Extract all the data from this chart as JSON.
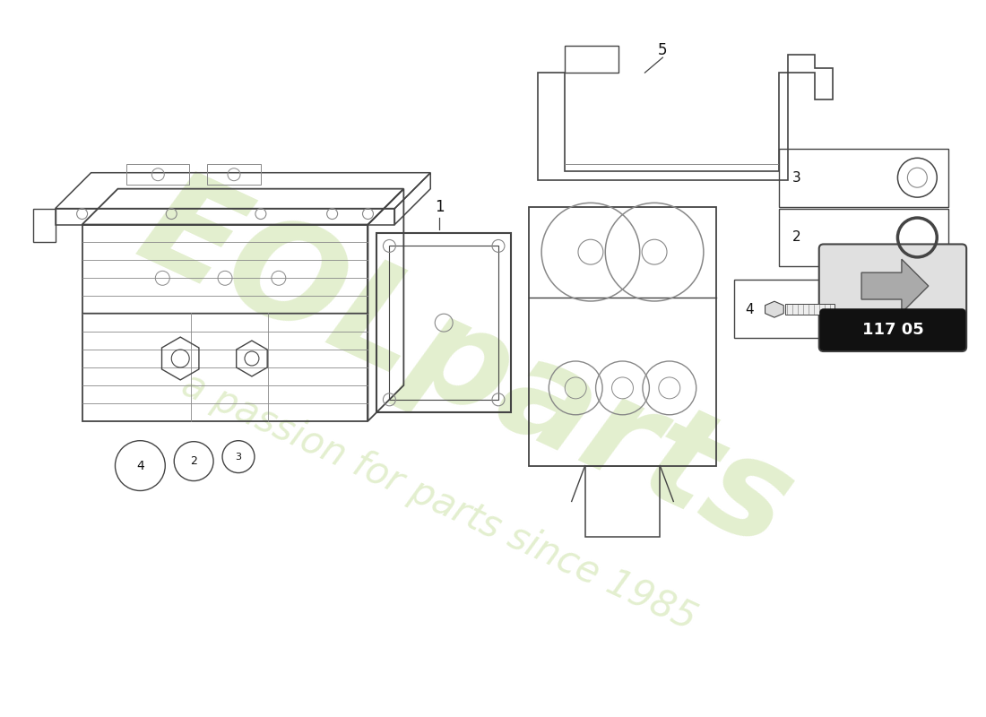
{
  "bg_color": "#ffffff",
  "line_color": "#444444",
  "light_line": "#888888",
  "watermark_color": "#c8dfa0",
  "part_number": "117 05",
  "wm1": "EOLparts",
  "wm2": "a passion for parts since 1985"
}
